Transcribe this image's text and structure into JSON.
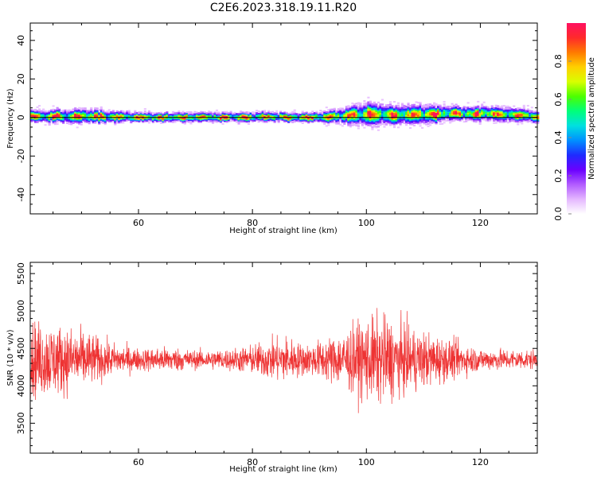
{
  "title": "C2E6.2023.318.19.11.R20",
  "colors": {
    "snr_line": "#ee3333",
    "background": "#ffffff",
    "axis": "#000000",
    "colormap": [
      "#ffffff",
      "#e4b6ff",
      "#b25cff",
      "#6a00ff",
      "#1f2bff",
      "#0090ff",
      "#00e0e0",
      "#00ff7a",
      "#4cff00",
      "#d8ff00",
      "#ffd000",
      "#ff7a00",
      "#ff2a2a",
      "#ff1060"
    ]
  },
  "chart_data": [
    {
      "type": "heatmap",
      "name": "spectrogram",
      "xlabel": "Height of straight line (km)",
      "ylabel": "Frequency (Hz)",
      "xlim": [
        41,
        130
      ],
      "ylim": [
        -50,
        49
      ],
      "xticks": [
        60,
        80,
        100,
        120
      ],
      "yticks": [
        40,
        20,
        0,
        -20,
        -40
      ],
      "horizontal_line_y": 0,
      "ridge": {
        "description_points_x": [
          42,
          50,
          60,
          70,
          80,
          90,
          95,
          100,
          105,
          110,
          115,
          120,
          125,
          130
        ],
        "center_freq_hz": [
          0.5,
          0.5,
          0,
          0,
          0,
          0,
          0.5,
          1.5,
          1,
          1.5,
          2,
          2,
          1.5,
          0.5
        ],
        "half_width_hz": [
          2.5,
          3,
          2,
          2,
          2,
          2,
          3,
          5,
          4,
          4,
          3,
          3,
          3,
          2.5
        ]
      },
      "colorbar": {
        "label": "Normalized spectral amplitude",
        "range": [
          0,
          1
        ],
        "ticks": [
          0.0,
          0.2,
          0.4,
          0.6,
          0.8
        ]
      }
    },
    {
      "type": "line",
      "name": "snr",
      "xlabel": "Height of straight line (km)",
      "ylabel": "SNR (10 * v/v)",
      "xlim": [
        41,
        130
      ],
      "ylim": [
        3100,
        5650
      ],
      "xticks": [
        60,
        80,
        100,
        120
      ],
      "yticks": [
        5500,
        5000,
        4500,
        4000,
        3500
      ],
      "baseline": 4350,
      "envelope": {
        "x": [
          41,
          45,
          50,
          55,
          60,
          65,
          70,
          75,
          80,
          84,
          86,
          88,
          90,
          95,
          100,
          103,
          106,
          110,
          115,
          120,
          125,
          130
        ],
        "amplitude": [
          450,
          420,
          350,
          200,
          130,
          150,
          110,
          120,
          170,
          250,
          280,
          200,
          180,
          300,
          480,
          520,
          420,
          330,
          230,
          130,
          120,
          110
        ]
      },
      "sample_count": 2200
    }
  ]
}
